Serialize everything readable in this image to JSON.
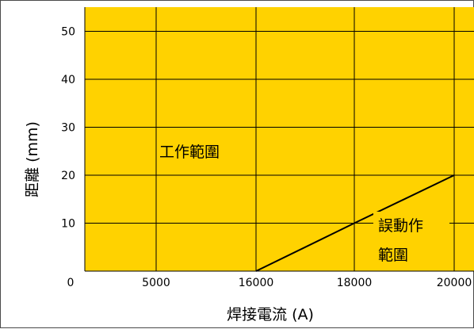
{
  "chart_data": {
    "type": "line",
    "xlabel": "焊接電流 (A)",
    "ylabel": "距離 (mm)",
    "x_ticks": [
      0,
      5000,
      16000,
      18000,
      20000
    ],
    "y_ticks": [
      10,
      20,
      30,
      40,
      50
    ],
    "y_tick_labels": [
      "10",
      "20",
      "30",
      "40",
      "50"
    ],
    "x_tick_labels": [
      "0",
      "5000",
      "16000",
      "18000",
      "20000"
    ],
    "ylim": [
      0,
      55
    ],
    "grid": true,
    "background_color": "#FFD200",
    "series": [
      {
        "x": [
          16000,
          18000,
          20000
        ],
        "y": [
          0,
          10,
          20
        ],
        "color": "#000000"
      }
    ],
    "annotations": [
      {
        "text": "工作範圍",
        "region": "upper-left"
      },
      {
        "text_line1": "誤動作",
        "text_line2": "範圍",
        "region": "lower-right"
      }
    ]
  }
}
